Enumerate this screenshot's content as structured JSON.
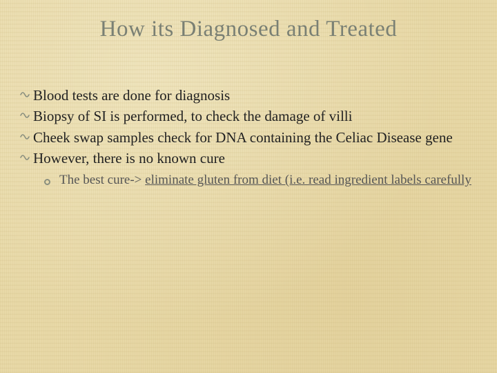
{
  "slide": {
    "title": "How its Diagnosed and Treated",
    "title_color": "#7a8074",
    "title_fontsize": 33,
    "body_fontsize": 21,
    "sub_fontsize": 19,
    "background_color": "#e8d9a8",
    "bullet_color": "#8a8f7f",
    "text_color": "#222222",
    "sub_text_color": "#555555",
    "bullets": [
      {
        "text": "Blood tests are done for diagnosis"
      },
      {
        "text": "Biopsy of SI is performed, to check the damage of villi"
      },
      {
        "text": "Cheek swap samples check for DNA containing the Celiac Disease gene"
      },
      {
        "text": "However, there is no known cure"
      }
    ],
    "sub_prefix": "The best cure-> ",
    "sub_underlined": "eliminate gluten from diet (i.e. read ingredient labels carefully"
  }
}
